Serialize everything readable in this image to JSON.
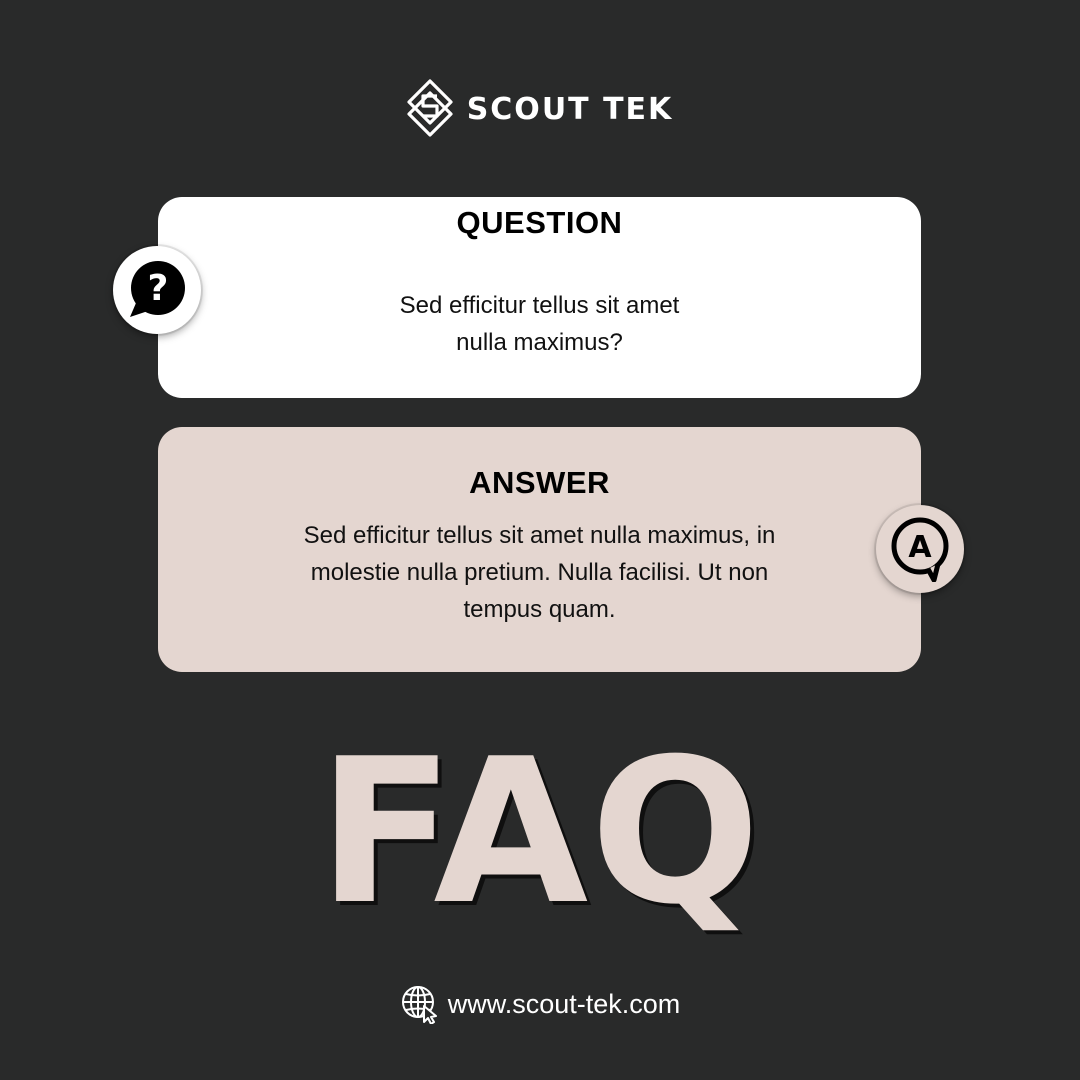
{
  "brand": {
    "name": "SCOUT TEK",
    "logo_icon": "interlocked-s-diamond-logo"
  },
  "question": {
    "title": "QUESTION",
    "text": "Sed efficitur tellus sit amet nulla maximus?",
    "icon": "question-bubble-icon",
    "card_color": "#ffffff"
  },
  "answer": {
    "title": "ANSWER",
    "text": "Sed efficitur tellus sit amet nulla maximus, in molestie nulla pretium. Nulla facilisi. Ut non tempus quam.",
    "icon": "answer-bubble-icon",
    "icon_letter": "A",
    "card_color": "#e4d6d0"
  },
  "headline": "FAQ",
  "footer": {
    "url": "www.scout-tek.com",
    "icon": "globe-cursor-icon"
  },
  "colors": {
    "background": "#292a2a",
    "accent": "#e4d6d0",
    "text_light": "#ffffff",
    "text_dark": "#000000"
  }
}
